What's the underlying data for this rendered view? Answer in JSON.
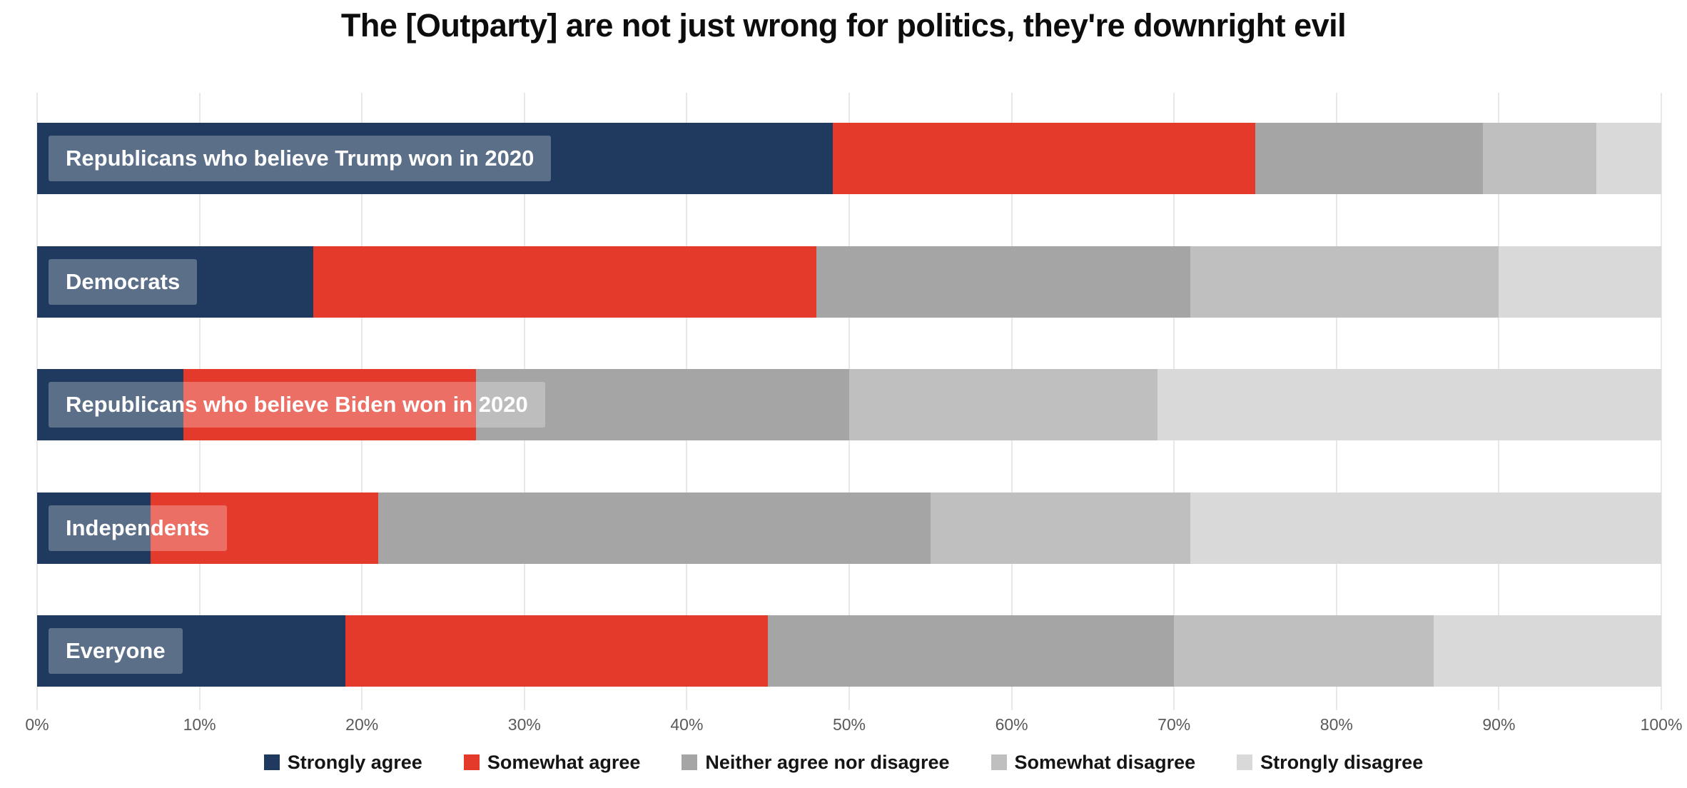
{
  "chart_data": {
    "type": "bar",
    "stacked": true,
    "orientation": "horizontal",
    "title": "The [Outparty] are not just wrong for politics, they're downright evil",
    "categories": [
      "Republicans who believe Trump won in 2020",
      "Democrats",
      "Republicans who believe Biden won in 2020",
      "Independents",
      "Everyone"
    ],
    "series": [
      {
        "name": "Strongly agree",
        "color": "#1F3A5E",
        "values": [
          49,
          17,
          9,
          7,
          19
        ]
      },
      {
        "name": "Somewhat agree",
        "color": "#E43A2C",
        "values": [
          26,
          31,
          18,
          14,
          26
        ]
      },
      {
        "name": "Neither agree nor disagree",
        "color": "#A5A5A5",
        "values": [
          14,
          23,
          23,
          34,
          25
        ]
      },
      {
        "name": "Somewhat disagree",
        "color": "#BFBFBF",
        "values": [
          7,
          19,
          19,
          16,
          16
        ]
      },
      {
        "name": "Strongly disagree",
        "color": "#D9D9D9",
        "values": [
          4,
          10,
          31,
          29,
          14
        ]
      }
    ],
    "x_tick_labels": [
      "0%",
      "10%",
      "20%",
      "30%",
      "40%",
      "50%",
      "60%",
      "70%",
      "80%",
      "90%",
      "100%"
    ],
    "xlim": [
      0,
      100
    ],
    "grid": true,
    "legend_position": "bottom"
  },
  "colors": {
    "gridline": "#e8e8e8",
    "axis_label": "#595959",
    "title_text": "#0d0d0d",
    "legend_text": "#151515",
    "row_label_overlay": "rgba(255,255,255,0.27)",
    "row_label_text": "#ffffff"
  }
}
